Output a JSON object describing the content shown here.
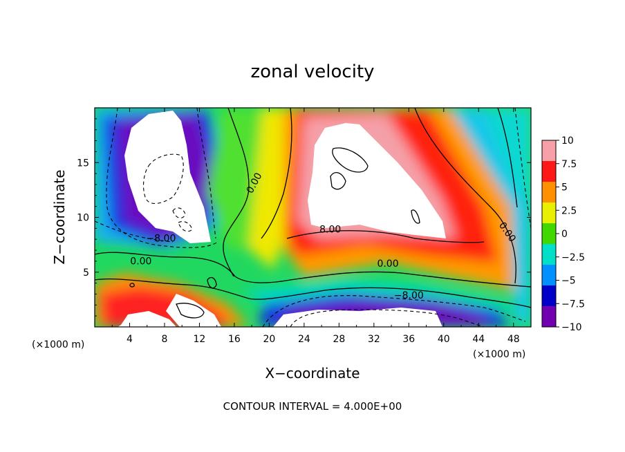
{
  "chart_data": {
    "type": "heatmap",
    "title": "zonal velocity",
    "xlabel": "X−coordinate",
    "ylabel": "Z−coordinate",
    "x_unit_left": "(×1000 m)",
    "x_unit_right": "(×1000 m)",
    "footer": "CONTOUR INTERVAL = 4.000E+00",
    "xlim": [
      0,
      50
    ],
    "ylim": [
      0,
      20
    ],
    "x_ticks": [
      4,
      8,
      12,
      16,
      20,
      24,
      28,
      32,
      36,
      40,
      44,
      48
    ],
    "y_ticks": [
      5,
      10,
      15
    ],
    "colorbar": {
      "min": -10,
      "max": 10,
      "ticks": [
        10,
        7.5,
        5,
        2.5,
        0,
        -2.5,
        -5,
        -7.5,
        -10
      ],
      "tick_labels": [
        "10",
        "7.5",
        "5",
        "2.5",
        "0",
        "−2.5",
        "−5",
        "−7.5",
        "−10"
      ],
      "colors": [
        "#f8a0a8",
        "#ff1818",
        "#ff9000",
        "#e8f000",
        "#40d800",
        "#00e0c8",
        "#0090ff",
        "#0000c8",
        "#7000b0"
      ]
    },
    "contour_labels": [
      {
        "text": "0.00",
        "x": 18.6,
        "z": 13.0,
        "angle": -62
      },
      {
        "text": "0.00",
        "x": 5.3,
        "z": 5.7,
        "angle": 0
      },
      {
        "text": "−8.00",
        "x": 7.6,
        "z": 7.8,
        "angle": 0
      },
      {
        "text": "8.00",
        "x": 27.0,
        "z": 8.6,
        "angle": 0
      },
      {
        "text": "0.00",
        "x": 33.6,
        "z": 5.5,
        "angle": 0
      },
      {
        "text": "−8.00",
        "x": 36.0,
        "z": 2.6,
        "angle": 0
      },
      {
        "text": "0.00",
        "x": 47.0,
        "z": 8.5,
        "angle": 55
      }
    ]
  }
}
